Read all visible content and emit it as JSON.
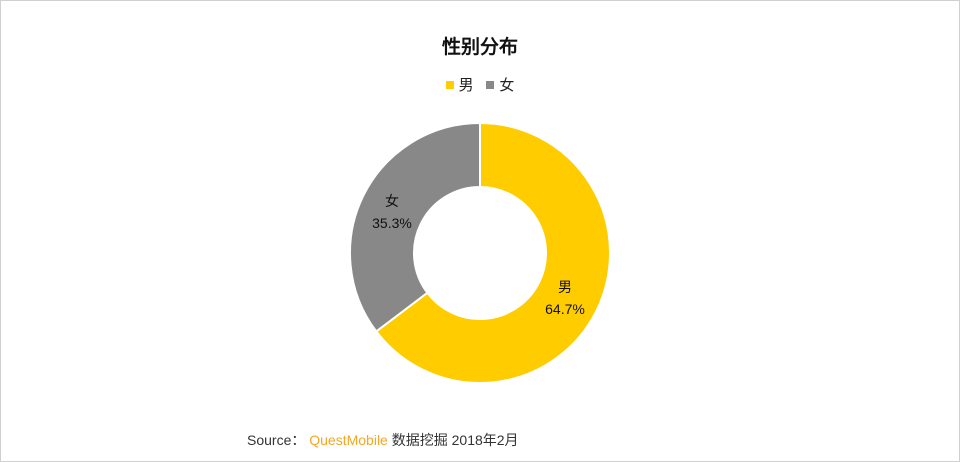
{
  "chart_data": {
    "type": "pie",
    "subtype": "donut",
    "title": "性别分布",
    "categories": [
      "男",
      "女"
    ],
    "values": [
      64.7,
      35.3
    ],
    "unit": "%",
    "colors": [
      "#ffcc00",
      "#888888"
    ],
    "legend": {
      "position": "top",
      "entries": [
        "男",
        "女"
      ]
    },
    "data_labels": [
      {
        "name": "男",
        "value": "64.7%"
      },
      {
        "name": "女",
        "value": "35.3%"
      }
    ]
  },
  "legend": [
    {
      "label": "男",
      "color": "#ffcc00"
    },
    {
      "label": "女",
      "color": "#888888"
    }
  ],
  "labels": {
    "male_name": "男",
    "male_value": "64.7%",
    "female_name": "女",
    "female_value": "35.3%"
  },
  "source": {
    "prefix": "Source：",
    "brand": "QuestMobile",
    "suffix": " 数据挖掘 2018年2月"
  }
}
